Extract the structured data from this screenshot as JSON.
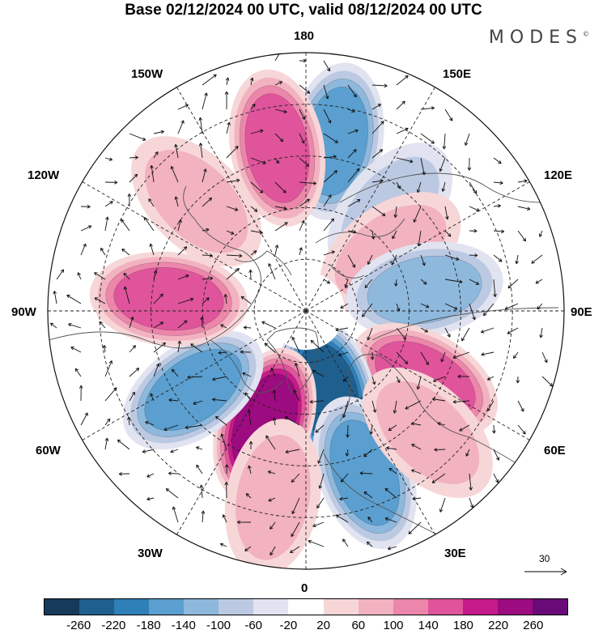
{
  "title": "Base 02/12/2024 00 UTC, valid 08/12/2024 00 UTC",
  "logo": "MODES",
  "logo_mark": "©",
  "longitude_labels": {
    "top": "180",
    "bottom": "0",
    "left": "90W",
    "right": "90E",
    "ul1": "150W",
    "ul2": "120W",
    "ur1": "150E",
    "ur2": "120E",
    "ll1": "60W",
    "ll2": "30W",
    "lr1": "60E",
    "lr2": "30E"
  },
  "reference_vector": "30",
  "colorbar": {
    "colors": [
      "#163a5a",
      "#1f5f8e",
      "#2f7fb8",
      "#5a9fd0",
      "#8fb8dd",
      "#bcc9e2",
      "#e1e3f0",
      "#ffffff",
      "#f7d6d8",
      "#f2b2bf",
      "#ec86ab",
      "#e0549b",
      "#c51b8a",
      "#9c0b7f",
      "#6a0a78"
    ],
    "tick_labels": [
      "-260",
      "-220",
      "-180",
      "-140",
      "-100",
      "-60",
      "-20",
      "20",
      "60",
      "100",
      "140",
      "180",
      "220",
      "260"
    ]
  },
  "anomaly_centers": [
    {
      "lon": 170,
      "lat": 40,
      "value": -160
    },
    {
      "lon": -170,
      "lat": 42,
      "value": 140
    },
    {
      "lon": 140,
      "lat": 52,
      "value": -60
    },
    {
      "lon": 125,
      "lat": 60,
      "value": 80
    },
    {
      "lon": 100,
      "lat": 55,
      "value": -120
    },
    {
      "lon": 60,
      "lat": 50,
      "value": 170
    },
    {
      "lon": 15,
      "lat": 65,
      "value": -220
    },
    {
      "lon": 20,
      "lat": 40,
      "value": -140
    },
    {
      "lon": -20,
      "lat": 55,
      "value": 230
    },
    {
      "lon": -55,
      "lat": 50,
      "value": -160
    },
    {
      "lon": -95,
      "lat": 50,
      "value": 160
    },
    {
      "lon": -135,
      "lat": 45,
      "value": 60
    },
    {
      "lon": 45,
      "lat": 40,
      "value": 80
    },
    {
      "lon": -10,
      "lat": 35,
      "value": 70
    }
  ]
}
